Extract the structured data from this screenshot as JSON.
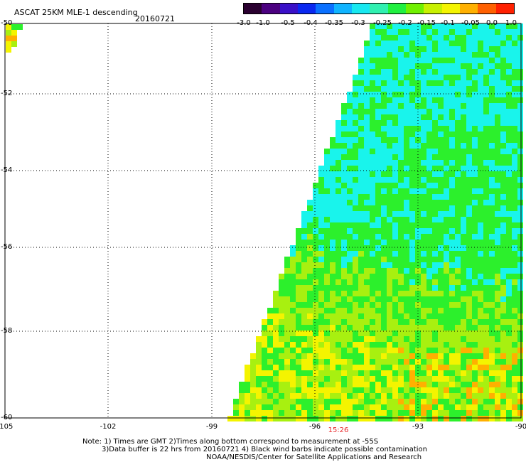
{
  "header": {
    "title": "ASCAT 25KM MLE-1 descending",
    "date": "20160721"
  },
  "colorbar": {
    "labels": [
      "-3.0",
      "-1.0",
      "-0.5",
      "-0.4",
      "-0.35",
      "-0.3",
      "-0.25",
      "-0.2",
      "-0.15",
      "-0.1",
      "-0.05",
      "0.0",
      "1.0"
    ],
    "colors": [
      "#2a0030",
      "#4b0080",
      "#3a10c8",
      "#0a28f0",
      "#0a70ff",
      "#10b4ff",
      "#18e8f0",
      "#30f0b0",
      "#20f040",
      "#70f000",
      "#c8f000",
      "#f4f400",
      "#ffb000",
      "#ff6000",
      "#ff2000"
    ]
  },
  "axes": {
    "lat_labels": [
      "-50",
      "-52",
      "-54",
      "-56",
      "-58",
      "-60"
    ],
    "lon_labels": [
      "-105",
      "-102",
      "-99",
      "-96",
      "-93",
      "-90"
    ],
    "time_label": "15:26"
  },
  "notes": {
    "line1": "Note: 1) Times are GMT 2)Times along bottom correspond to measurement at -55S",
    "line2": "3)Data buffer is 22 hrs from 20160721 4) Black wind barbs indicate possible contamination",
    "line3": "NOAA/NESDIS/Center for Satellite Applications and Research"
  },
  "colors": {
    "cyan": "#19f4ec",
    "green": "#2cf02c",
    "yellow_green": "#a8f010",
    "yellow": "#f4f400",
    "orange": "#ffb000",
    "blue": "#1060ff"
  }
}
